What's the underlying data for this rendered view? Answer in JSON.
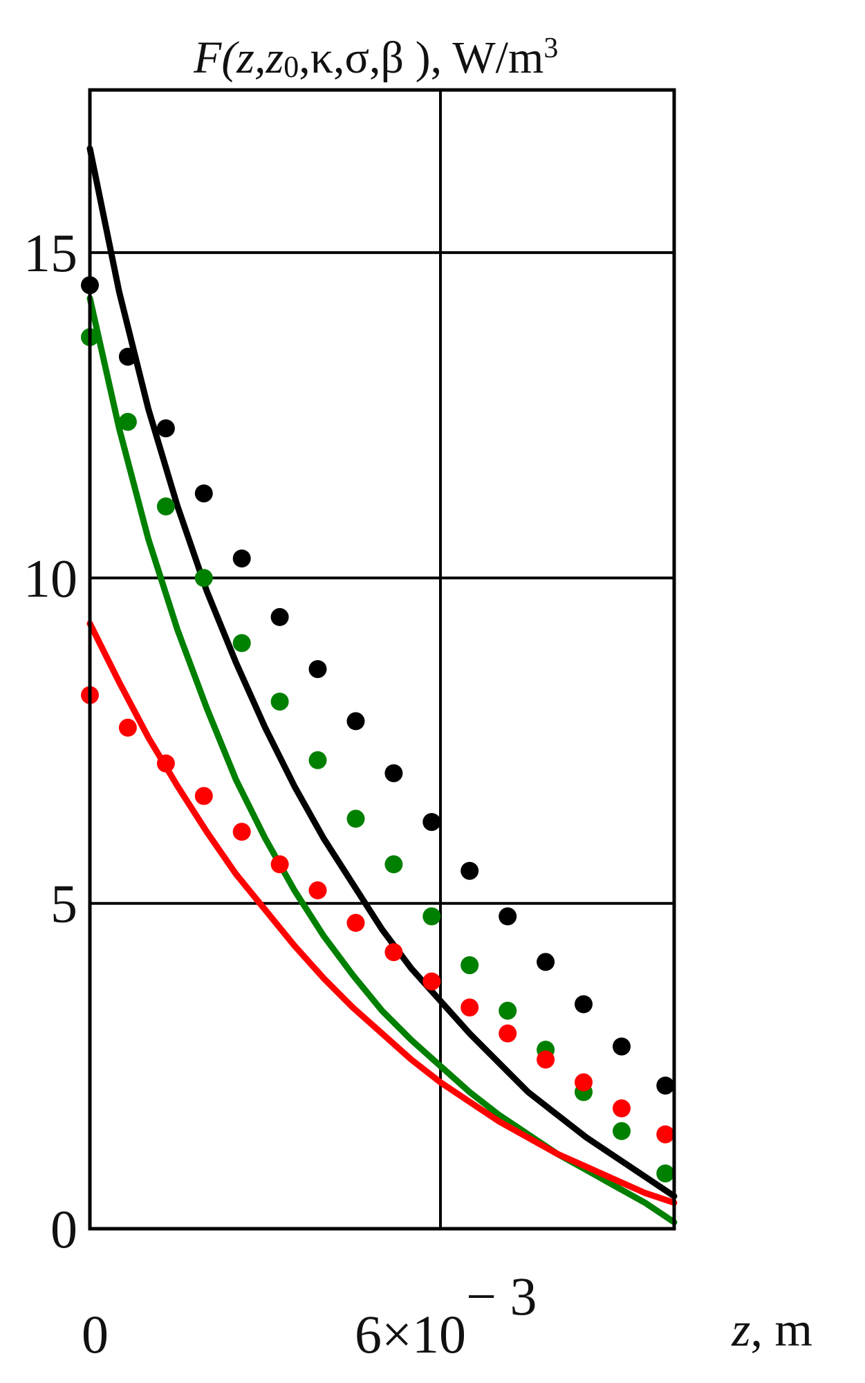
{
  "chart_data": {
    "type": "scatter",
    "title_parts": {
      "func": "F",
      "args": "(z,z",
      "sub0": "0",
      "rest": ",κ,σ,β ), W/m",
      "sup": "3"
    },
    "xlabel_var": "z",
    "xlabel_unit": ", m",
    "x_ticks": [
      {
        "value": 0,
        "label": "0"
      },
      {
        "value": 0.006,
        "label_base": "6×10",
        "label_exp": "− 3"
      }
    ],
    "y_ticks": [
      {
        "value": 0,
        "label": "0"
      },
      {
        "value": 5,
        "label": "5"
      },
      {
        "value": 10,
        "label": "10"
      },
      {
        "value": 15,
        "label": "15"
      }
    ],
    "xlim": [
      0,
      0.01
    ],
    "ylim": [
      0,
      17.5
    ],
    "grid": true,
    "series": [
      {
        "color": "#000000",
        "curve": [
          [
            0,
            16.6
          ],
          [
            0.0005,
            14.4
          ],
          [
            0.001,
            12.6
          ],
          [
            0.0015,
            11.1
          ],
          [
            0.002,
            9.8
          ],
          [
            0.0025,
            8.7
          ],
          [
            0.003,
            7.7
          ],
          [
            0.0035,
            6.8
          ],
          [
            0.004,
            6.0
          ],
          [
            0.0045,
            5.3
          ],
          [
            0.005,
            4.6
          ],
          [
            0.0055,
            4.0
          ],
          [
            0.006,
            3.5
          ],
          [
            0.0065,
            3.0
          ],
          [
            0.007,
            2.55
          ],
          [
            0.0075,
            2.1
          ],
          [
            0.008,
            1.75
          ],
          [
            0.0085,
            1.4
          ],
          [
            0.009,
            1.1
          ],
          [
            0.0095,
            0.8
          ],
          [
            0.01,
            0.5
          ]
        ],
        "points": [
          [
            0,
            14.5
          ],
          [
            0.00065,
            13.4
          ],
          [
            0.0013,
            12.3
          ],
          [
            0.00195,
            11.3
          ],
          [
            0.0026,
            10.3
          ],
          [
            0.00325,
            9.4
          ],
          [
            0.0039,
            8.6
          ],
          [
            0.00455,
            7.8
          ],
          [
            0.0052,
            7.0
          ],
          [
            0.00585,
            6.25
          ],
          [
            0.0065,
            5.5
          ],
          [
            0.00715,
            4.8
          ],
          [
            0.0078,
            4.1
          ],
          [
            0.00845,
            3.45
          ],
          [
            0.0091,
            2.8
          ],
          [
            0.00985,
            2.2
          ]
        ]
      },
      {
        "color": "#008000",
        "curve": [
          [
            0,
            14.3
          ],
          [
            0.0005,
            12.3
          ],
          [
            0.001,
            10.6
          ],
          [
            0.0015,
            9.2
          ],
          [
            0.002,
            8.0
          ],
          [
            0.0025,
            6.9
          ],
          [
            0.003,
            6.0
          ],
          [
            0.0035,
            5.2
          ],
          [
            0.004,
            4.5
          ],
          [
            0.0045,
            3.9
          ],
          [
            0.005,
            3.35
          ],
          [
            0.0055,
            2.9
          ],
          [
            0.006,
            2.5
          ],
          [
            0.0065,
            2.1
          ],
          [
            0.007,
            1.75
          ],
          [
            0.0075,
            1.45
          ],
          [
            0.008,
            1.15
          ],
          [
            0.0085,
            0.9
          ],
          [
            0.009,
            0.65
          ],
          [
            0.0095,
            0.4
          ],
          [
            0.01,
            0.1
          ]
        ],
        "points": [
          [
            0,
            13.7
          ],
          [
            0.00065,
            12.4
          ],
          [
            0.0013,
            11.1
          ],
          [
            0.00195,
            10.0
          ],
          [
            0.0026,
            9.0
          ],
          [
            0.00325,
            8.1
          ],
          [
            0.0039,
            7.2
          ],
          [
            0.00455,
            6.3
          ],
          [
            0.0052,
            5.6
          ],
          [
            0.00585,
            4.8
          ],
          [
            0.0065,
            4.05
          ],
          [
            0.00715,
            3.35
          ],
          [
            0.0078,
            2.75
          ],
          [
            0.00845,
            2.1
          ],
          [
            0.0091,
            1.5
          ],
          [
            0.00985,
            0.85
          ]
        ]
      },
      {
        "color": "#ff0000",
        "curve": [
          [
            0,
            9.3
          ],
          [
            0.0005,
            8.4
          ],
          [
            0.001,
            7.55
          ],
          [
            0.0015,
            6.8
          ],
          [
            0.002,
            6.1
          ],
          [
            0.0025,
            5.45
          ],
          [
            0.003,
            4.9
          ],
          [
            0.0035,
            4.35
          ],
          [
            0.004,
            3.85
          ],
          [
            0.0045,
            3.4
          ],
          [
            0.005,
            3.0
          ],
          [
            0.0055,
            2.6
          ],
          [
            0.006,
            2.25
          ],
          [
            0.0065,
            1.95
          ],
          [
            0.007,
            1.65
          ],
          [
            0.0075,
            1.4
          ],
          [
            0.008,
            1.15
          ],
          [
            0.0085,
            0.95
          ],
          [
            0.009,
            0.75
          ],
          [
            0.0095,
            0.55
          ],
          [
            0.01,
            0.4
          ]
        ],
        "points": [
          [
            0,
            8.2
          ],
          [
            0.00065,
            7.7
          ],
          [
            0.0013,
            7.15
          ],
          [
            0.00195,
            6.65
          ],
          [
            0.0026,
            6.1
          ],
          [
            0.00325,
            5.6
          ],
          [
            0.0039,
            5.2
          ],
          [
            0.00455,
            4.7
          ],
          [
            0.0052,
            4.25
          ],
          [
            0.00585,
            3.8
          ],
          [
            0.0065,
            3.4
          ],
          [
            0.00715,
            3.0
          ],
          [
            0.0078,
            2.6
          ],
          [
            0.00845,
            2.25
          ],
          [
            0.0091,
            1.85
          ],
          [
            0.00985,
            1.45
          ]
        ]
      }
    ]
  }
}
